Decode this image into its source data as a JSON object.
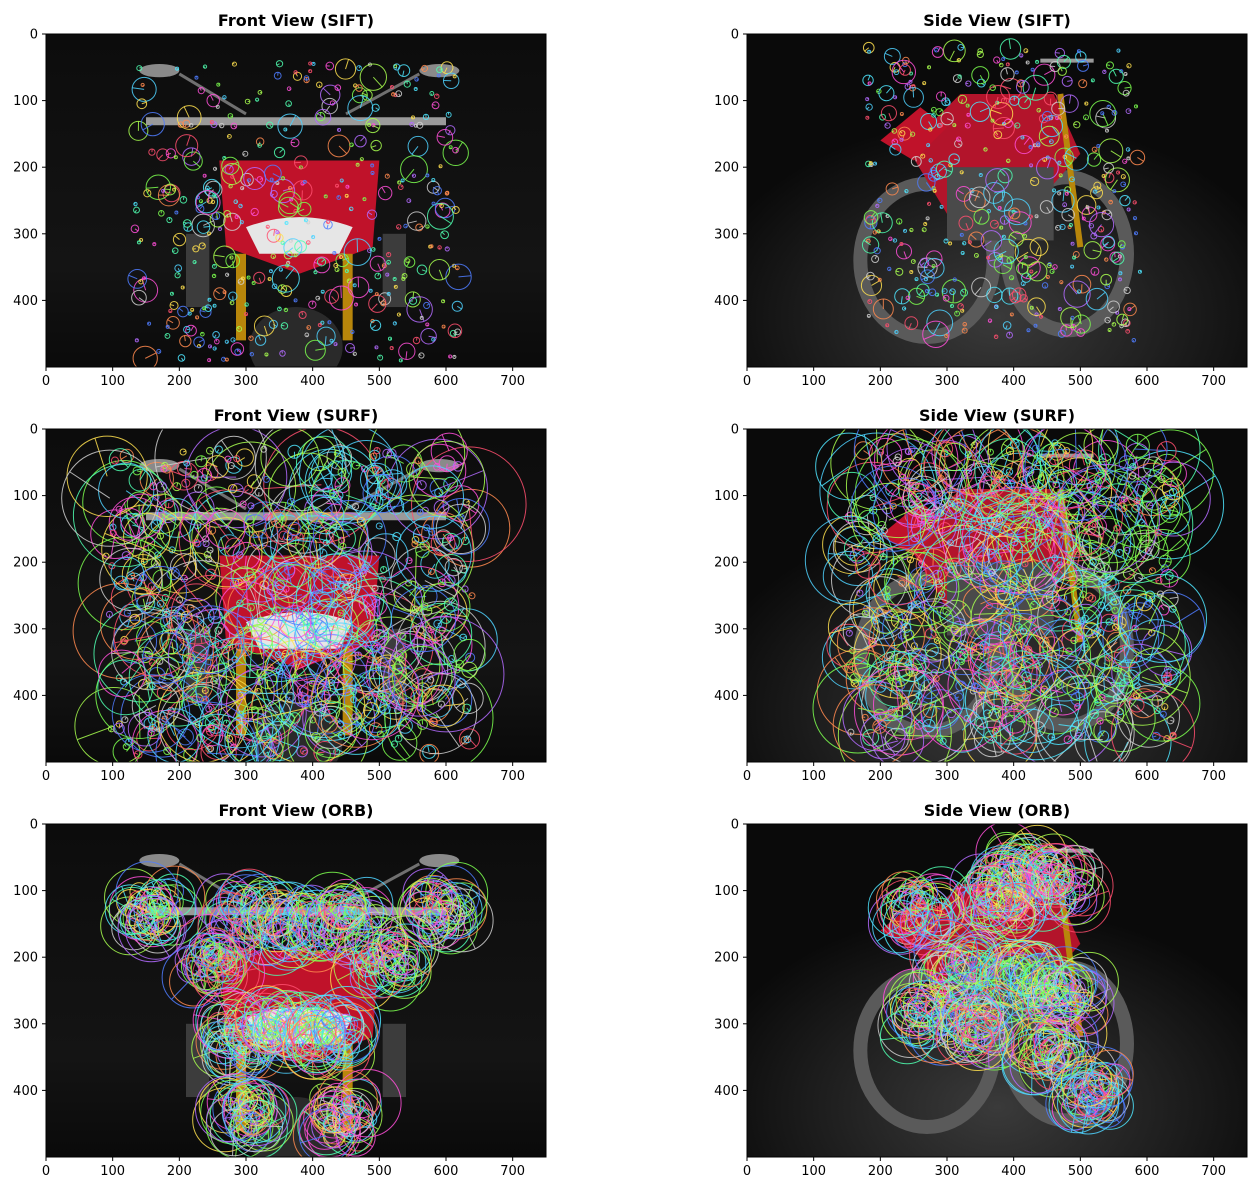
{
  "figure": {
    "background": "#ffffff",
    "image_background": "#050505"
  },
  "chart_data": [
    {
      "type": "image",
      "title": "Front View (SIFT)",
      "detector": "SIFT",
      "view": "front",
      "xlim": [
        0,
        750
      ],
      "ylim": [
        500,
        0
      ],
      "x_ticks": [
        0,
        100,
        200,
        300,
        400,
        500,
        600,
        700
      ],
      "y_ticks": [
        0,
        100,
        200,
        300,
        400
      ],
      "keypoint_style": "small",
      "keypoint_region": {
        "x": [
          130,
          620
        ],
        "y": [
          40,
          490
        ]
      },
      "motorcycle": "front"
    },
    {
      "type": "image",
      "title": "Side View (SIFT)",
      "detector": "SIFT",
      "view": "side",
      "xlim": [
        0,
        750
      ],
      "ylim": [
        500,
        0
      ],
      "x_ticks": [
        0,
        100,
        200,
        300,
        400,
        500,
        600,
        700
      ],
      "y_ticks": [
        0,
        100,
        200,
        300,
        400
      ],
      "keypoint_style": "small",
      "keypoint_region": {
        "x": [
          180,
          590
        ],
        "y": [
          20,
          460
        ]
      },
      "motorcycle": "side"
    },
    {
      "type": "image",
      "title": "Front View (SURF)",
      "detector": "SURF",
      "view": "front",
      "xlim": [
        0,
        750
      ],
      "ylim": [
        500,
        0
      ],
      "x_ticks": [
        0,
        100,
        200,
        300,
        400,
        500,
        600,
        700
      ],
      "y_ticks": [
        0,
        100,
        200,
        300,
        400
      ],
      "keypoint_style": "dense",
      "keypoint_region": {
        "x": [
          90,
          640
        ],
        "y": [
          30,
          490
        ]
      },
      "motorcycle": "front"
    },
    {
      "type": "image",
      "title": "Side View (SURF)",
      "detector": "SURF",
      "view": "side",
      "xlim": [
        0,
        750
      ],
      "ylim": [
        500,
        0
      ],
      "x_ticks": [
        0,
        100,
        200,
        300,
        400,
        500,
        600,
        700
      ],
      "y_ticks": [
        0,
        100,
        200,
        300,
        400
      ],
      "keypoint_style": "dense",
      "keypoint_region": {
        "x": [
          150,
          640
        ],
        "y": [
          20,
          470
        ]
      },
      "motorcycle": "side"
    },
    {
      "type": "image",
      "title": "Front View (ORB)",
      "detector": "ORB",
      "view": "front",
      "xlim": [
        0,
        750
      ],
      "ylim": [
        500,
        0
      ],
      "x_ticks": [
        0,
        100,
        200,
        300,
        400,
        500,
        600,
        700
      ],
      "y_ticks": [
        0,
        100,
        200,
        300,
        400
      ],
      "keypoint_style": "clustered",
      "keypoint_clusters": [
        {
          "x": 160,
          "y": 130
        },
        {
          "x": 595,
          "y": 130
        },
        {
          "x": 300,
          "y": 140
        },
        {
          "x": 380,
          "y": 150
        },
        {
          "x": 460,
          "y": 145
        },
        {
          "x": 250,
          "y": 210
        },
        {
          "x": 510,
          "y": 205
        },
        {
          "x": 290,
          "y": 320
        },
        {
          "x": 360,
          "y": 310
        },
        {
          "x": 430,
          "y": 320
        },
        {
          "x": 300,
          "y": 440
        },
        {
          "x": 450,
          "y": 440
        }
      ],
      "motorcycle": "front"
    },
    {
      "type": "image",
      "title": "Side View (ORB)",
      "detector": "ORB",
      "view": "side",
      "xlim": [
        0,
        750
      ],
      "ylim": [
        500,
        0
      ],
      "x_ticks": [
        0,
        100,
        200,
        300,
        400,
        500,
        600,
        700
      ],
      "y_ticks": [
        0,
        100,
        200,
        300,
        400
      ],
      "keypoint_style": "clustered",
      "keypoint_clusters": [
        {
          "x": 410,
          "y": 70
        },
        {
          "x": 470,
          "y": 90
        },
        {
          "x": 380,
          "y": 110
        },
        {
          "x": 260,
          "y": 130
        },
        {
          "x": 320,
          "y": 220
        },
        {
          "x": 420,
          "y": 230
        },
        {
          "x": 270,
          "y": 290
        },
        {
          "x": 350,
          "y": 300
        },
        {
          "x": 480,
          "y": 260
        },
        {
          "x": 460,
          "y": 340
        },
        {
          "x": 520,
          "y": 400
        }
      ],
      "motorcycle": "side"
    }
  ]
}
